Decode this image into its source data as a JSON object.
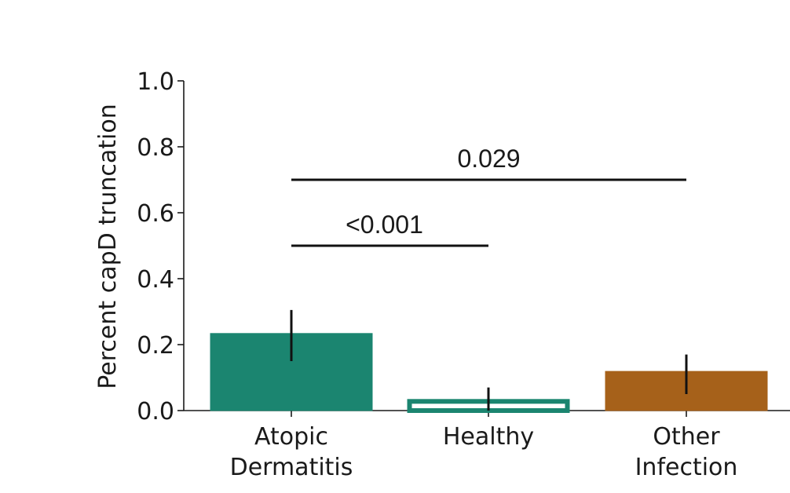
{
  "chart_data": {
    "type": "bar",
    "ylabel": "Percent capD truncation",
    "xlabel": "",
    "ylim": [
      0,
      1.0
    ],
    "yticks": [
      "0.0",
      "0.2",
      "0.4",
      "0.6",
      "0.8",
      "1.0"
    ],
    "categories": [
      "Atopic\nDermatitis",
      "Healthy",
      "Other\nInfection"
    ],
    "values": [
      0.235,
      0.035,
      0.12
    ],
    "error_low": [
      0.15,
      0.0,
      0.05
    ],
    "error_high": [
      0.305,
      0.07,
      0.17
    ],
    "colors": [
      "#1b8570",
      "#ffffff",
      "#a6611a"
    ],
    "edge_colors": [
      "#1b8570",
      "#1b8570",
      "#a6611a"
    ],
    "significance": [
      {
        "from": 0,
        "to": 1,
        "y": 0.5,
        "label": "<0.001"
      },
      {
        "from": 0,
        "to": 2,
        "y": 0.7,
        "label": "0.029"
      }
    ],
    "grid": false
  }
}
